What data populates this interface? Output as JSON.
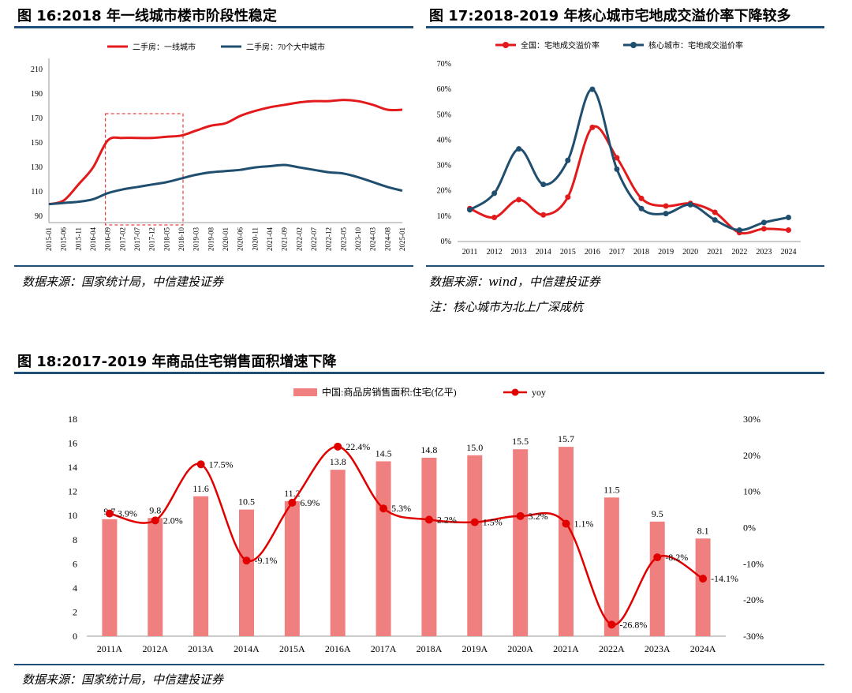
{
  "figure16": {
    "title": "图 16:2018 年一线城市楼市阶段性稳定",
    "source": "数据来源：国家统计局，中信建投证券",
    "chart_data": {
      "type": "line",
      "x": [
        "2015-01",
        "2015-06",
        "2015-11",
        "2016-04",
        "2016-09",
        "2017-02",
        "2017-07",
        "2017-12",
        "2018-05",
        "2018-10",
        "2019-03",
        "2019-08",
        "2020-01",
        "2020-06",
        "2020-11",
        "2021-04",
        "2021-09",
        "2022-02",
        "2022-07",
        "2022-12",
        "2023-05",
        "2023-10",
        "2024-03",
        "2024-08",
        "2025-01"
      ],
      "series": [
        {
          "name": "二手房：一线城市",
          "color": "#e31a1c",
          "values": [
            100,
            103,
            116,
            130,
            152,
            154,
            154,
            154,
            155,
            156,
            160,
            164,
            166,
            172,
            176,
            179,
            181,
            183,
            184,
            184,
            185,
            184,
            181,
            177,
            177
          ]
        },
        {
          "name": "二手房：70个大中城市",
          "color": "#1f4e6e",
          "values": [
            100,
            101,
            102,
            104,
            109,
            112,
            114,
            116,
            118,
            121,
            124,
            126,
            127,
            128,
            130,
            131,
            132,
            130,
            128,
            126,
            125,
            122,
            118,
            114,
            111
          ]
        }
      ],
      "ylim": [
        85,
        215
      ],
      "yticks": [
        90,
        110,
        130,
        150,
        170,
        190,
        210
      ],
      "legend": "top",
      "highlight_box": {
        "from": "2016-09",
        "to": "2018-10"
      }
    }
  },
  "figure17": {
    "title": "图 17:2018-2019 年核心城市宅地成交溢价率下降较多",
    "source": "数据来源：wind，中信建投证券",
    "note": "注：核心城市为北上广深成杭",
    "chart_data": {
      "type": "line",
      "categories": [
        "2011",
        "2012",
        "2013",
        "2014",
        "2015",
        "2016",
        "2017",
        "2018",
        "2019",
        "2020",
        "2021",
        "2022",
        "2023",
        "2024"
      ],
      "series": [
        {
          "name": "全国：宅地成交溢价率",
          "color": "#e31a1c",
          "values": [
            13,
            9.5,
            16.5,
            10.5,
            17.5,
            45,
            33,
            17,
            14,
            15,
            11.5,
            3.5,
            5,
            4.5
          ]
        },
        {
          "name": "核心城市：宅地成交溢价率",
          "color": "#1f4e6e",
          "values": [
            12.5,
            19,
            36.5,
            22.5,
            32,
            60,
            28.5,
            13,
            11,
            14.5,
            8.5,
            4.5,
            7.5,
            9.5
          ]
        }
      ],
      "ylim": [
        0,
        70
      ],
      "yticks": [
        "0%",
        "10%",
        "20%",
        "30%",
        "40%",
        "50%",
        "60%",
        "70%"
      ],
      "legend": "top"
    }
  },
  "figure18": {
    "title": "图 18:2017-2019 年商品住宅销售面积增速下降",
    "source": "数据来源：国家统计局，中信建投证券",
    "chart_data": {
      "type": "bar",
      "categories": [
        "2011A",
        "2012A",
        "2013A",
        "2014A",
        "2015A",
        "2016A",
        "2017A",
        "2018A",
        "2019A",
        "2020A",
        "2021A",
        "2022A",
        "2023A",
        "2024A"
      ],
      "series": [
        {
          "name": "中国:商品房销售面积:住宅(亿平)",
          "type": "bar",
          "axis": "left",
          "color": "#f08080",
          "values": [
            9.7,
            9.8,
            11.6,
            10.5,
            11.2,
            13.8,
            14.5,
            14.8,
            15.0,
            15.5,
            15.7,
            11.5,
            9.5,
            8.1
          ],
          "labels": [
            "9.7",
            "9.8",
            "11.6",
            "10.5",
            "11.2",
            "13.8",
            "14.5",
            "14.8",
            "15.0",
            "15.5",
            "15.7",
            "11.5",
            "9.5",
            "8.1"
          ]
        },
        {
          "name": "yoy",
          "type": "line",
          "axis": "right",
          "color": "#e00000",
          "values": [
            3.9,
            2.0,
            17.5,
            -9.1,
            6.9,
            22.4,
            5.3,
            2.2,
            1.5,
            3.2,
            1.1,
            -26.8,
            -8.2,
            -14.1
          ],
          "labels": [
            "3.9%",
            "2.0%",
            "17.5%",
            "-9.1%",
            "6.9%",
            "22.4%",
            "5.3%",
            "2.2%",
            "1.5%",
            "3.2%",
            "1.1%",
            "-26.8%",
            "-8.2%",
            "-14.1%"
          ]
        }
      ],
      "ylim_left": [
        0,
        18
      ],
      "yticks_left": [
        "0",
        "2",
        "4",
        "6",
        "8",
        "10",
        "12",
        "14",
        "16",
        "18"
      ],
      "ylim_right": [
        -30,
        30
      ],
      "yticks_right": [
        "-30%",
        "-20%",
        "-10%",
        "0%",
        "10%",
        "20%",
        "30%"
      ],
      "legend": "top"
    }
  }
}
